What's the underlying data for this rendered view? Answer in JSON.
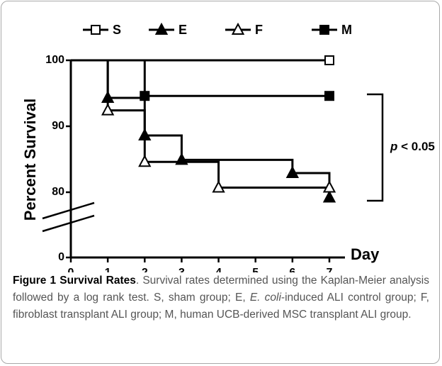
{
  "chart_data": {
    "type": "step",
    "ylabel": "Percent Survival",
    "xlabel": "Day",
    "xlim": [
      0,
      7
    ],
    "xticks": [
      0,
      1,
      2,
      3,
      4,
      5,
      6,
      7
    ],
    "ylim": [
      0,
      100
    ],
    "yticks": [
      0,
      80,
      90,
      100
    ],
    "ybreak": [
      0,
      75
    ],
    "annotation": {
      "italic": "p",
      "text": "< 0.05"
    },
    "series": [
      {
        "name": "S",
        "color": "#000000",
        "marker": "square",
        "filled": false,
        "x": [
          0,
          7
        ],
        "values": [
          100,
          100
        ]
      },
      {
        "name": "E",
        "color": "#000000",
        "marker": "triangle",
        "filled": true,
        "x": [
          0,
          1,
          2,
          3,
          6,
          7
        ],
        "values": [
          100,
          94.3,
          88.6,
          84.9,
          82.9,
          79.2
        ]
      },
      {
        "name": "F",
        "color": "#000000",
        "marker": "triangle",
        "filled": false,
        "x": [
          0,
          1,
          2,
          4,
          7
        ],
        "values": [
          100,
          92.4,
          84.6,
          80.7,
          80.7
        ]
      },
      {
        "name": "M",
        "color": "#000000",
        "marker": "square",
        "filled": true,
        "x": [
          0,
          2,
          7
        ],
        "values": [
          100,
          94.6,
          94.6
        ]
      }
    ]
  },
  "caption": {
    "label": "Figure 1",
    "title": "Survival Rates",
    "text_parts": [
      ". Survival rates determined using the Kaplan-Meier analysis followed by a log rank test. S, sham group; E, ",
      "E. coli",
      "-induced ALI control group; F, fibroblast transplant ALI group; M, human UCB-derived MSC transplant ALI group."
    ]
  }
}
